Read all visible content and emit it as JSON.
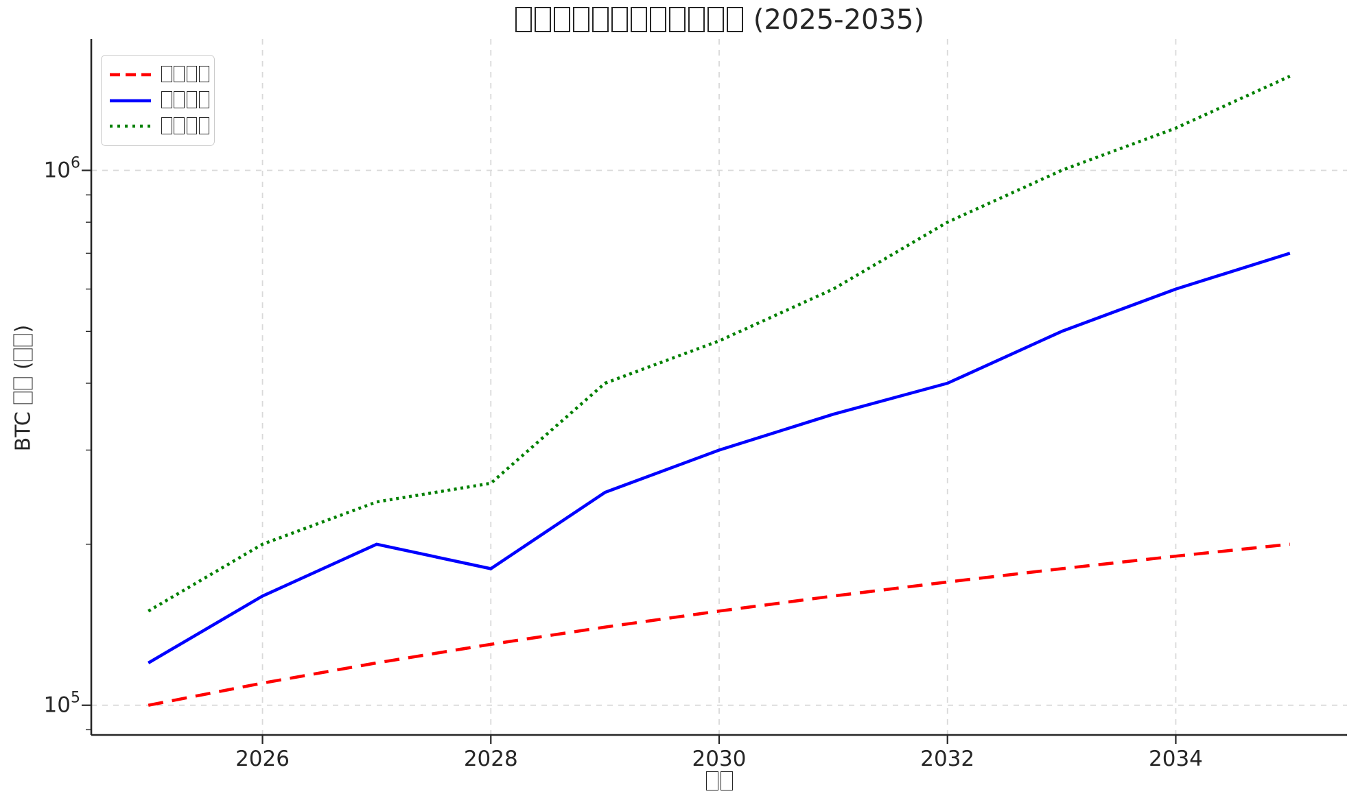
{
  "title": "□□□□□□□□□□□□ (2025-2035)",
  "axes": {
    "xlabel": "□□",
    "ylabel": "BTC □□ (□□)"
  },
  "legend": {
    "position": "upper left",
    "entries": [
      {
        "label": "□□□□",
        "color": "#ff0000",
        "style": "dashed"
      },
      {
        "label": "□□□□",
        "color": "#0000ff",
        "style": "solid"
      },
      {
        "label": "□□□□",
        "color": "#008000",
        "style": "dotted"
      }
    ]
  },
  "chart_data": {
    "type": "line",
    "x": [
      2025,
      2026,
      2027,
      2028,
      2029,
      2030,
      2031,
      2032,
      2033,
      2034,
      2035
    ],
    "series": [
      {
        "name": "□□□□",
        "color": "#ff0000",
        "style": "dashed",
        "values": [
          100000,
          110000,
          120000,
          130000,
          140000,
          150000,
          160000,
          170000,
          180000,
          190000,
          200000
        ]
      },
      {
        "name": "□□□□",
        "color": "#0000ff",
        "style": "solid",
        "values": [
          120000,
          160000,
          200000,
          180000,
          250000,
          300000,
          350000,
          400000,
          500000,
          600000,
          700000
        ]
      },
      {
        "name": "□□□□",
        "color": "#008000",
        "style": "dotted",
        "values": [
          150000,
          200000,
          240000,
          260000,
          400000,
          480000,
          600000,
          800000,
          1000000,
          1200000,
          1500000
        ]
      }
    ],
    "yscale": "log",
    "xlim": [
      2024.5,
      2035.5
    ],
    "ylim": [
      88000,
      1760000
    ],
    "xticks": [
      2026,
      2028,
      2030,
      2032,
      2034
    ],
    "yticks": [
      100000,
      1000000
    ],
    "ytick_label_base": "10",
    "ytick_label_exponents": [
      "5",
      "6"
    ],
    "grid": true
  },
  "style": {
    "text_color": "#262626",
    "grid_color": "#d9d9d9",
    "spine_color": "#262626",
    "background": "#ffffff"
  }
}
